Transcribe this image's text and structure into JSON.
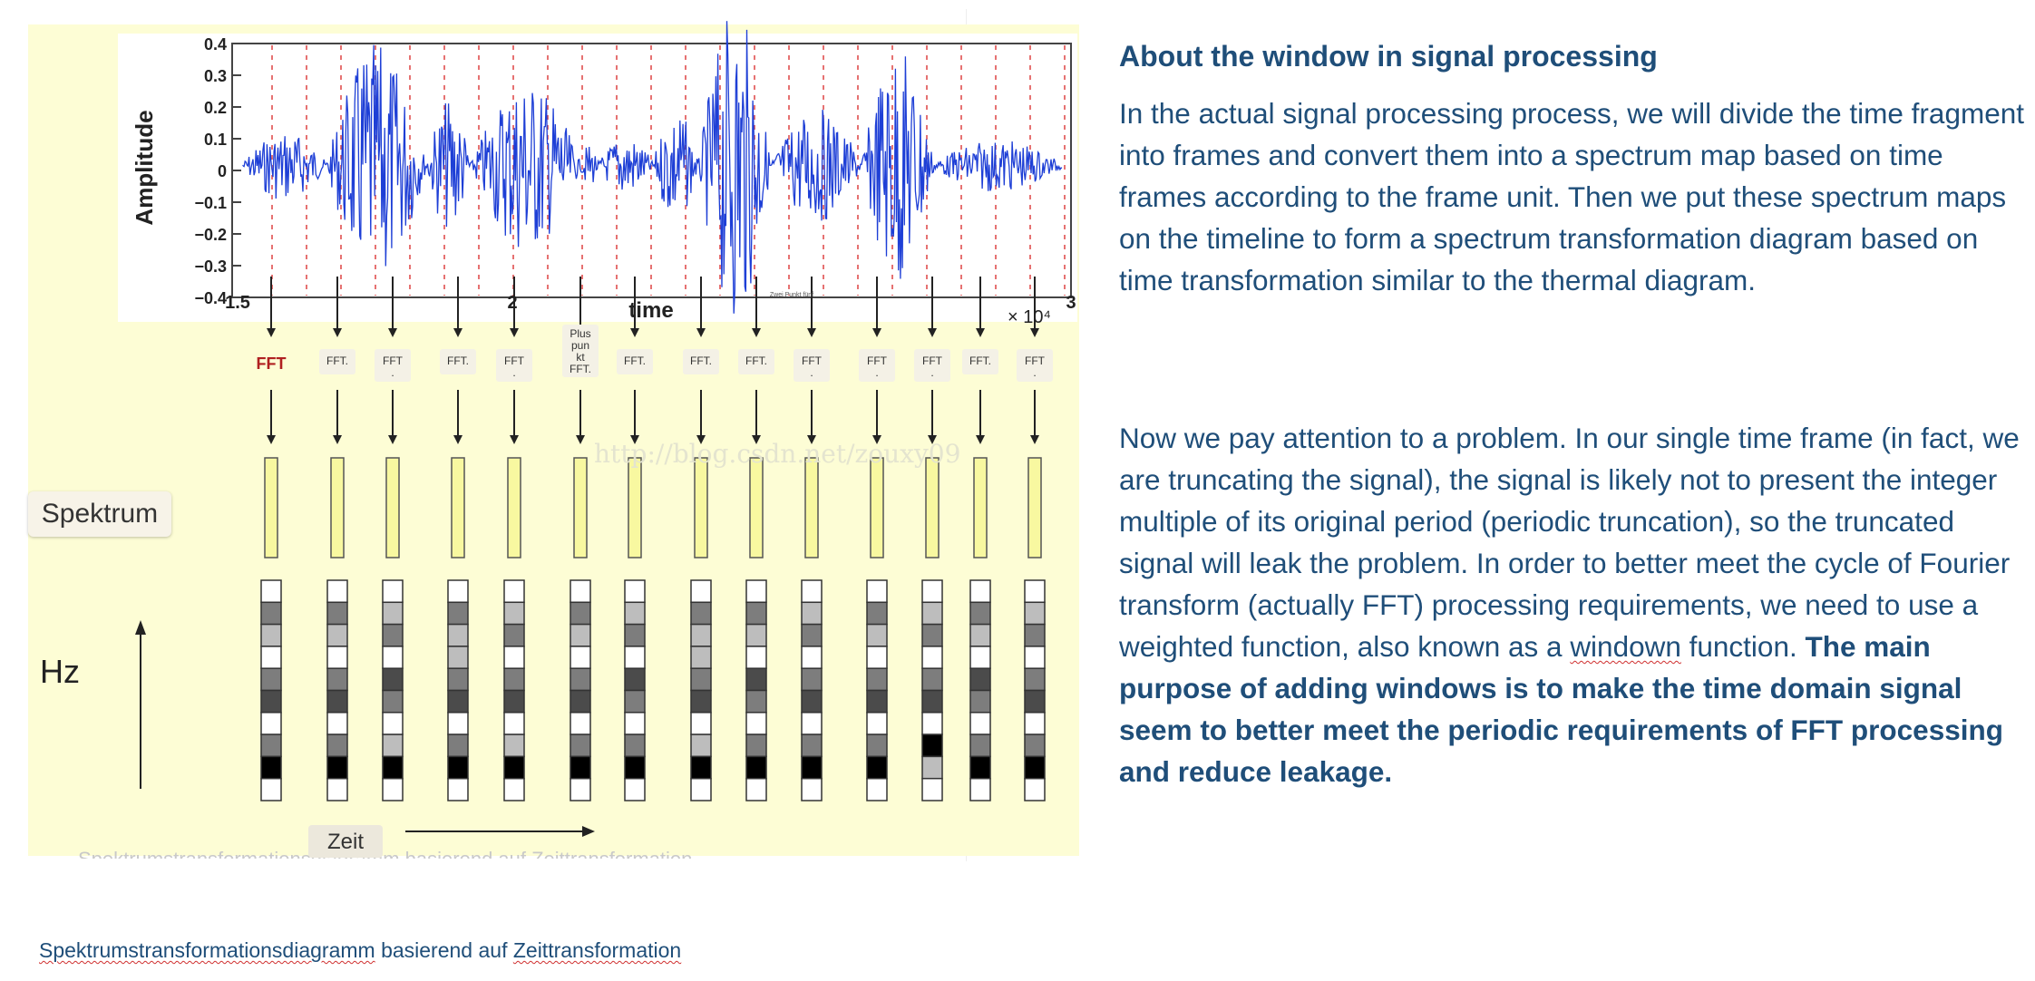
{
  "figure": {
    "y_axis_label": "Amplitude",
    "x_axis_label": "time",
    "x_multiplier": "× 10⁴",
    "y_ticks": [
      "0.4",
      "0.3",
      "0.2",
      "0.1",
      "0",
      "−0.1",
      "−0.2",
      "−0.3",
      "−0.4"
    ],
    "x_ticks": [
      "1.5",
      "2",
      "3"
    ],
    "fft_labels": [
      "FFT",
      "FFT.",
      "FFT .",
      "FFT.",
      "FFT .",
      "Plus pun kt FFT.",
      "FFT.",
      "FFT.",
      "FFT.",
      "FFT .",
      "FFT .",
      "FFT .",
      "FFT.",
      "FFT ."
    ],
    "small_note": "Zwei Punkt fünf",
    "watermark": "http://blog.csdn.net/zouxy09",
    "spektrum_label": "Spektrum",
    "hz_label": "Hz",
    "zeit_label": "Zeit",
    "faint_caption": "Spektrumstransformationsdiagramm basierend auf Zeittransformation",
    "colors": {
      "background": "#fdfdd5",
      "waveform": "#1e3fd6",
      "fft_first": "#b02020",
      "spectrum_bar": "#f8f8a0"
    },
    "spectrum_columns": [
      [
        0,
        2,
        1,
        0,
        2,
        3,
        0,
        2,
        4,
        0
      ],
      [
        0,
        2,
        1,
        0,
        2,
        3,
        0,
        2,
        4,
        0
      ],
      [
        0,
        1,
        2,
        0,
        3,
        2,
        0,
        1,
        4,
        0
      ],
      [
        0,
        2,
        1,
        1,
        2,
        3,
        0,
        2,
        4,
        0
      ],
      [
        0,
        1,
        2,
        0,
        2,
        3,
        0,
        1,
        4,
        0
      ],
      [
        0,
        2,
        1,
        0,
        2,
        3,
        0,
        2,
        4,
        0
      ],
      [
        0,
        1,
        2,
        0,
        3,
        2,
        0,
        2,
        4,
        0
      ],
      [
        0,
        2,
        1,
        1,
        2,
        3,
        0,
        1,
        4,
        0
      ],
      [
        0,
        2,
        1,
        0,
        3,
        2,
        0,
        2,
        4,
        0
      ],
      [
        0,
        1,
        2,
        0,
        2,
        3,
        0,
        2,
        4,
        0
      ],
      [
        0,
        2,
        1,
        0,
        2,
        3,
        0,
        2,
        4,
        0
      ],
      [
        0,
        1,
        2,
        0,
        2,
        3,
        0,
        4,
        1,
        0
      ],
      [
        0,
        2,
        1,
        0,
        3,
        2,
        0,
        2,
        4,
        0
      ],
      [
        0,
        1,
        2,
        0,
        2,
        3,
        0,
        2,
        4,
        0
      ]
    ]
  },
  "caption": {
    "word1": "Spektrumstransformationsdiagramm",
    "mid": " basierend auf ",
    "word2": "Zeittransformation"
  },
  "article": {
    "heading": "About the window in signal processing",
    "paragraph1": "In the actual signal processing process, we will divide the time fragment into frames and convert them into a spectrum map based on time frames according to the frame unit. Then we put these spectrum maps on the timeline to form a spectrum transformation diagram based on time transformation similar to the thermal diagram.",
    "paragraph2_a": "Now we pay attention to a problem. In our single time frame (in fact, we are truncating the signal), the signal is likely not to present the integer multiple of its original period (periodic truncation), so the truncated signal will leak the problem. In order to better meet the cycle of Fourier transform (actually FFT) processing requirements, we need to use a weighted function, also known as a ",
    "paragraph2_word": "windown",
    "paragraph2_b": " function. ",
    "paragraph2_bold": "The main purpose of adding windows is to make the time domain signal seem to better meet the periodic requirements of FFT processing and reduce leakage."
  }
}
